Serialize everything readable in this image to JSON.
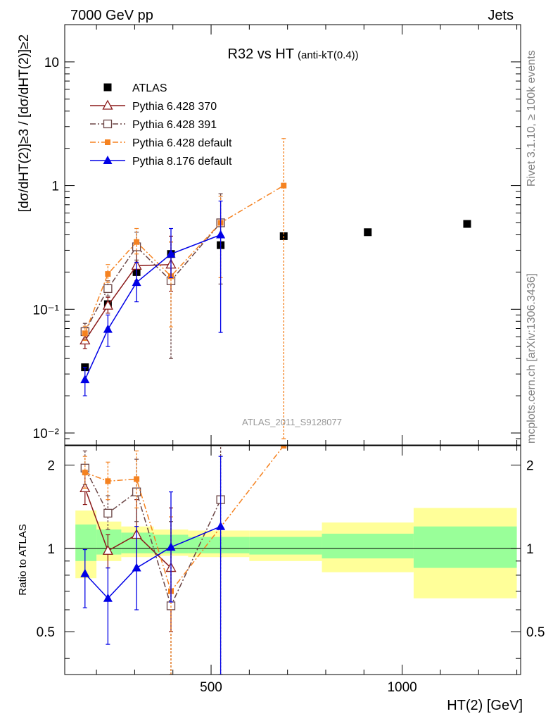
{
  "header": {
    "left": "7000 GeV pp",
    "right": "Jets"
  },
  "side_labels": {
    "rivet": "Rivet 3.1.10, ≥ 100k events",
    "source": "mcplots.cern.ch [arXiv:1306.3436]"
  },
  "watermark": "ATLAS_2011_S9128077",
  "colors": {
    "atlas": "#000000",
    "p370": "#8b1a1a",
    "p391": "#6b4545",
    "p6def": "#f58220",
    "p8def": "#0000e6",
    "band_inner": "#99ff99",
    "band_outer": "#ffff99"
  },
  "chart_data": [
    {
      "id": "main",
      "type": "scatter",
      "title": "R32 vs HT",
      "title_suffix": "(anti-kT(0.4))",
      "ylabel": "[dσ/dHT(2)]≥3 / [dσ/dHT(2)]≥2",
      "yscale": "log",
      "ylim": [
        0.008,
        20
      ],
      "xlim": [
        117,
        1310
      ],
      "y_tick_labels": [
        "10⁻²",
        "10⁻¹",
        "1",
        "10"
      ],
      "y_ticks": [
        0.01,
        0.1,
        1,
        10
      ],
      "series": [
        {
          "name": "ATLAS",
          "marker": "square-filled",
          "line": "none",
          "points": [
            {
              "x": 170,
              "y": 0.034,
              "ylo": 0.034,
              "yhi": 0.034
            },
            {
              "x": 230,
              "y": 0.11,
              "ylo": 0.11,
              "yhi": 0.11
            },
            {
              "x": 305,
              "y": 0.2,
              "ylo": 0.2,
              "yhi": 0.2
            },
            {
              "x": 395,
              "y": 0.28,
              "ylo": 0.28,
              "yhi": 0.28
            },
            {
              "x": 525,
              "y": 0.33,
              "ylo": 0.33,
              "yhi": 0.33
            },
            {
              "x": 690,
              "y": 0.39,
              "ylo": 0.39,
              "yhi": 0.39
            },
            {
              "x": 910,
              "y": 0.42,
              "ylo": 0.42,
              "yhi": 0.42
            },
            {
              "x": 1170,
              "y": 0.49,
              "ylo": 0.49,
              "yhi": 0.49
            }
          ]
        },
        {
          "name": "Pythia 6.428 370",
          "marker": "triangle-open",
          "line": "solid",
          "points": [
            {
              "x": 170,
              "y": 0.056,
              "ylo": 0.048,
              "yhi": 0.065
            },
            {
              "x": 230,
              "y": 0.107,
              "ylo": 0.093,
              "yhi": 0.125
            },
            {
              "x": 305,
              "y": 0.225,
              "ylo": 0.17,
              "yhi": 0.3
            },
            {
              "x": 395,
              "y": 0.23,
              "ylo": 0.14,
              "yhi": 0.39
            }
          ]
        },
        {
          "name": "Pythia 6.428 391",
          "marker": "square-open",
          "line": "dashdot",
          "points": [
            {
              "x": 170,
              "y": 0.066,
              "ylo": 0.057,
              "yhi": 0.077
            },
            {
              "x": 230,
              "y": 0.147,
              "ylo": 0.128,
              "yhi": 0.17
            },
            {
              "x": 305,
              "y": 0.32,
              "ylo": 0.25,
              "yhi": 0.42
            },
            {
              "x": 395,
              "y": 0.17,
              "ylo": 0.04,
              "yhi": 0.35
            },
            {
              "x": 525,
              "y": 0.5,
              "ylo": 0.16,
              "yhi": 0.86
            }
          ]
        },
        {
          "name": "Pythia 6.428 default",
          "marker": "square-small",
          "line": "dashdot",
          "points": [
            {
              "x": 170,
              "y": 0.064,
              "ylo": 0.056,
              "yhi": 0.073
            },
            {
              "x": 230,
              "y": 0.193,
              "ylo": 0.165,
              "yhi": 0.23
            },
            {
              "x": 305,
              "y": 0.35,
              "ylo": 0.28,
              "yhi": 0.45
            },
            {
              "x": 395,
              "y": 0.185,
              "ylo": 0.072,
              "yhi": 0.35
            },
            {
              "x": 525,
              "y": 0.5,
              "ylo": 0.18,
              "yhi": 0.82
            },
            {
              "x": 690,
              "y": 1.0,
              "ylo": 0.009,
              "yhi": 2.4
            }
          ]
        },
        {
          "name": "Pythia 8.176 default",
          "marker": "triangle-filled",
          "line": "solid",
          "points": [
            {
              "x": 170,
              "y": 0.027,
              "ylo": 0.02,
              "yhi": 0.034
            },
            {
              "x": 230,
              "y": 0.069,
              "ylo": 0.05,
              "yhi": 0.09
            },
            {
              "x": 305,
              "y": 0.165,
              "ylo": 0.115,
              "yhi": 0.24
            },
            {
              "x": 395,
              "y": 0.28,
              "ylo": 0.18,
              "yhi": 0.45
            },
            {
              "x": 525,
              "y": 0.4,
              "ylo": 0.065,
              "yhi": 0.75
            }
          ]
        }
      ]
    },
    {
      "id": "ratio",
      "type": "scatter",
      "ylabel": "Ratio to ATLAS",
      "xlabel": "HT(2) [GeV]",
      "yscale": "log",
      "ylim": [
        0.35,
        2.35
      ],
      "xlim": [
        117,
        1310
      ],
      "y_ticks": [
        0.5,
        1,
        2
      ],
      "y_tick_labels": [
        "0.5",
        "1",
        "2"
      ],
      "x_ticks": [
        500,
        1000
      ],
      "x_tick_labels": [
        "500",
        "1000"
      ],
      "bands": [
        {
          "x0": 145,
          "x1": 200,
          "inner": [
            0.9,
            1.22
          ],
          "outer": [
            0.78,
            1.37
          ]
        },
        {
          "x0": 200,
          "x1": 265,
          "inner": [
            0.95,
            1.17
          ],
          "outer": [
            0.9,
            1.25
          ]
        },
        {
          "x0": 265,
          "x1": 350,
          "inner": [
            0.96,
            1.14
          ],
          "outer": [
            0.93,
            1.2
          ]
        },
        {
          "x0": 350,
          "x1": 440,
          "inner": [
            0.96,
            1.12
          ],
          "outer": [
            0.94,
            1.17
          ]
        },
        {
          "x0": 440,
          "x1": 600,
          "inner": [
            0.96,
            1.1
          ],
          "outer": [
            0.93,
            1.16
          ]
        },
        {
          "x0": 600,
          "x1": 790,
          "inner": [
            0.95,
            1.1
          ],
          "outer": [
            0.9,
            1.16
          ]
        },
        {
          "x0": 790,
          "x1": 1030,
          "inner": [
            0.92,
            1.13
          ],
          "outer": [
            0.82,
            1.24
          ]
        },
        {
          "x0": 1030,
          "x1": 1300,
          "inner": [
            0.85,
            1.2
          ],
          "outer": [
            0.66,
            1.4
          ]
        }
      ],
      "series": [
        {
          "name": "Pythia 6.428 370",
          "marker": "triangle-open",
          "line": "solid",
          "points": [
            {
              "x": 170,
              "y": 1.65,
              "ylo": 1.44,
              "yhi": 1.9
            },
            {
              "x": 230,
              "y": 0.98,
              "ylo": 0.85,
              "yhi": 1.12
            },
            {
              "x": 305,
              "y": 1.12,
              "ylo": 0.85,
              "yhi": 1.5
            },
            {
              "x": 395,
              "y": 0.85,
              "ylo": 0.5,
              "yhi": 1.4
            }
          ]
        },
        {
          "name": "Pythia 6.428 391",
          "marker": "square-open",
          "line": "dashdot",
          "points": [
            {
              "x": 170,
              "y": 1.95,
              "ylo": 1.7,
              "yhi": 2.25
            },
            {
              "x": 230,
              "y": 1.34,
              "ylo": 1.17,
              "yhi": 1.55
            },
            {
              "x": 305,
              "y": 1.6,
              "ylo": 1.25,
              "yhi": 2.1
            },
            {
              "x": 395,
              "y": 0.62,
              "ylo": 0.35,
              "yhi": 1.25
            },
            {
              "x": 525,
              "y": 1.5,
              "ylo": 0.35,
              "yhi": 2.35
            }
          ]
        },
        {
          "name": "Pythia 6.428 default",
          "marker": "square-small",
          "line": "dashdot",
          "points": [
            {
              "x": 170,
              "y": 1.88,
              "ylo": 1.65,
              "yhi": 2.15
            },
            {
              "x": 230,
              "y": 1.75,
              "ylo": 1.5,
              "yhi": 2.05
            },
            {
              "x": 305,
              "y": 1.78,
              "ylo": 1.4,
              "yhi": 2.25
            },
            {
              "x": 395,
              "y": 0.7,
              "ylo": 0.35,
              "yhi": 1.3
            },
            {
              "x": 690,
              "y": 2.35,
              "ylo": 2.35,
              "yhi": 2.35
            }
          ]
        },
        {
          "name": "Pythia 8.176 default",
          "marker": "triangle-filled",
          "line": "solid",
          "points": [
            {
              "x": 170,
              "y": 0.81,
              "ylo": 0.61,
              "yhi": 0.99
            },
            {
              "x": 230,
              "y": 0.66,
              "ylo": 0.45,
              "yhi": 0.85
            },
            {
              "x": 305,
              "y": 0.85,
              "ylo": 0.6,
              "yhi": 1.2
            },
            {
              "x": 395,
              "y": 1.01,
              "ylo": 0.64,
              "yhi": 1.6
            },
            {
              "x": 525,
              "y": 1.2,
              "ylo": 0.35,
              "yhi": 2.15
            }
          ]
        }
      ]
    }
  ]
}
